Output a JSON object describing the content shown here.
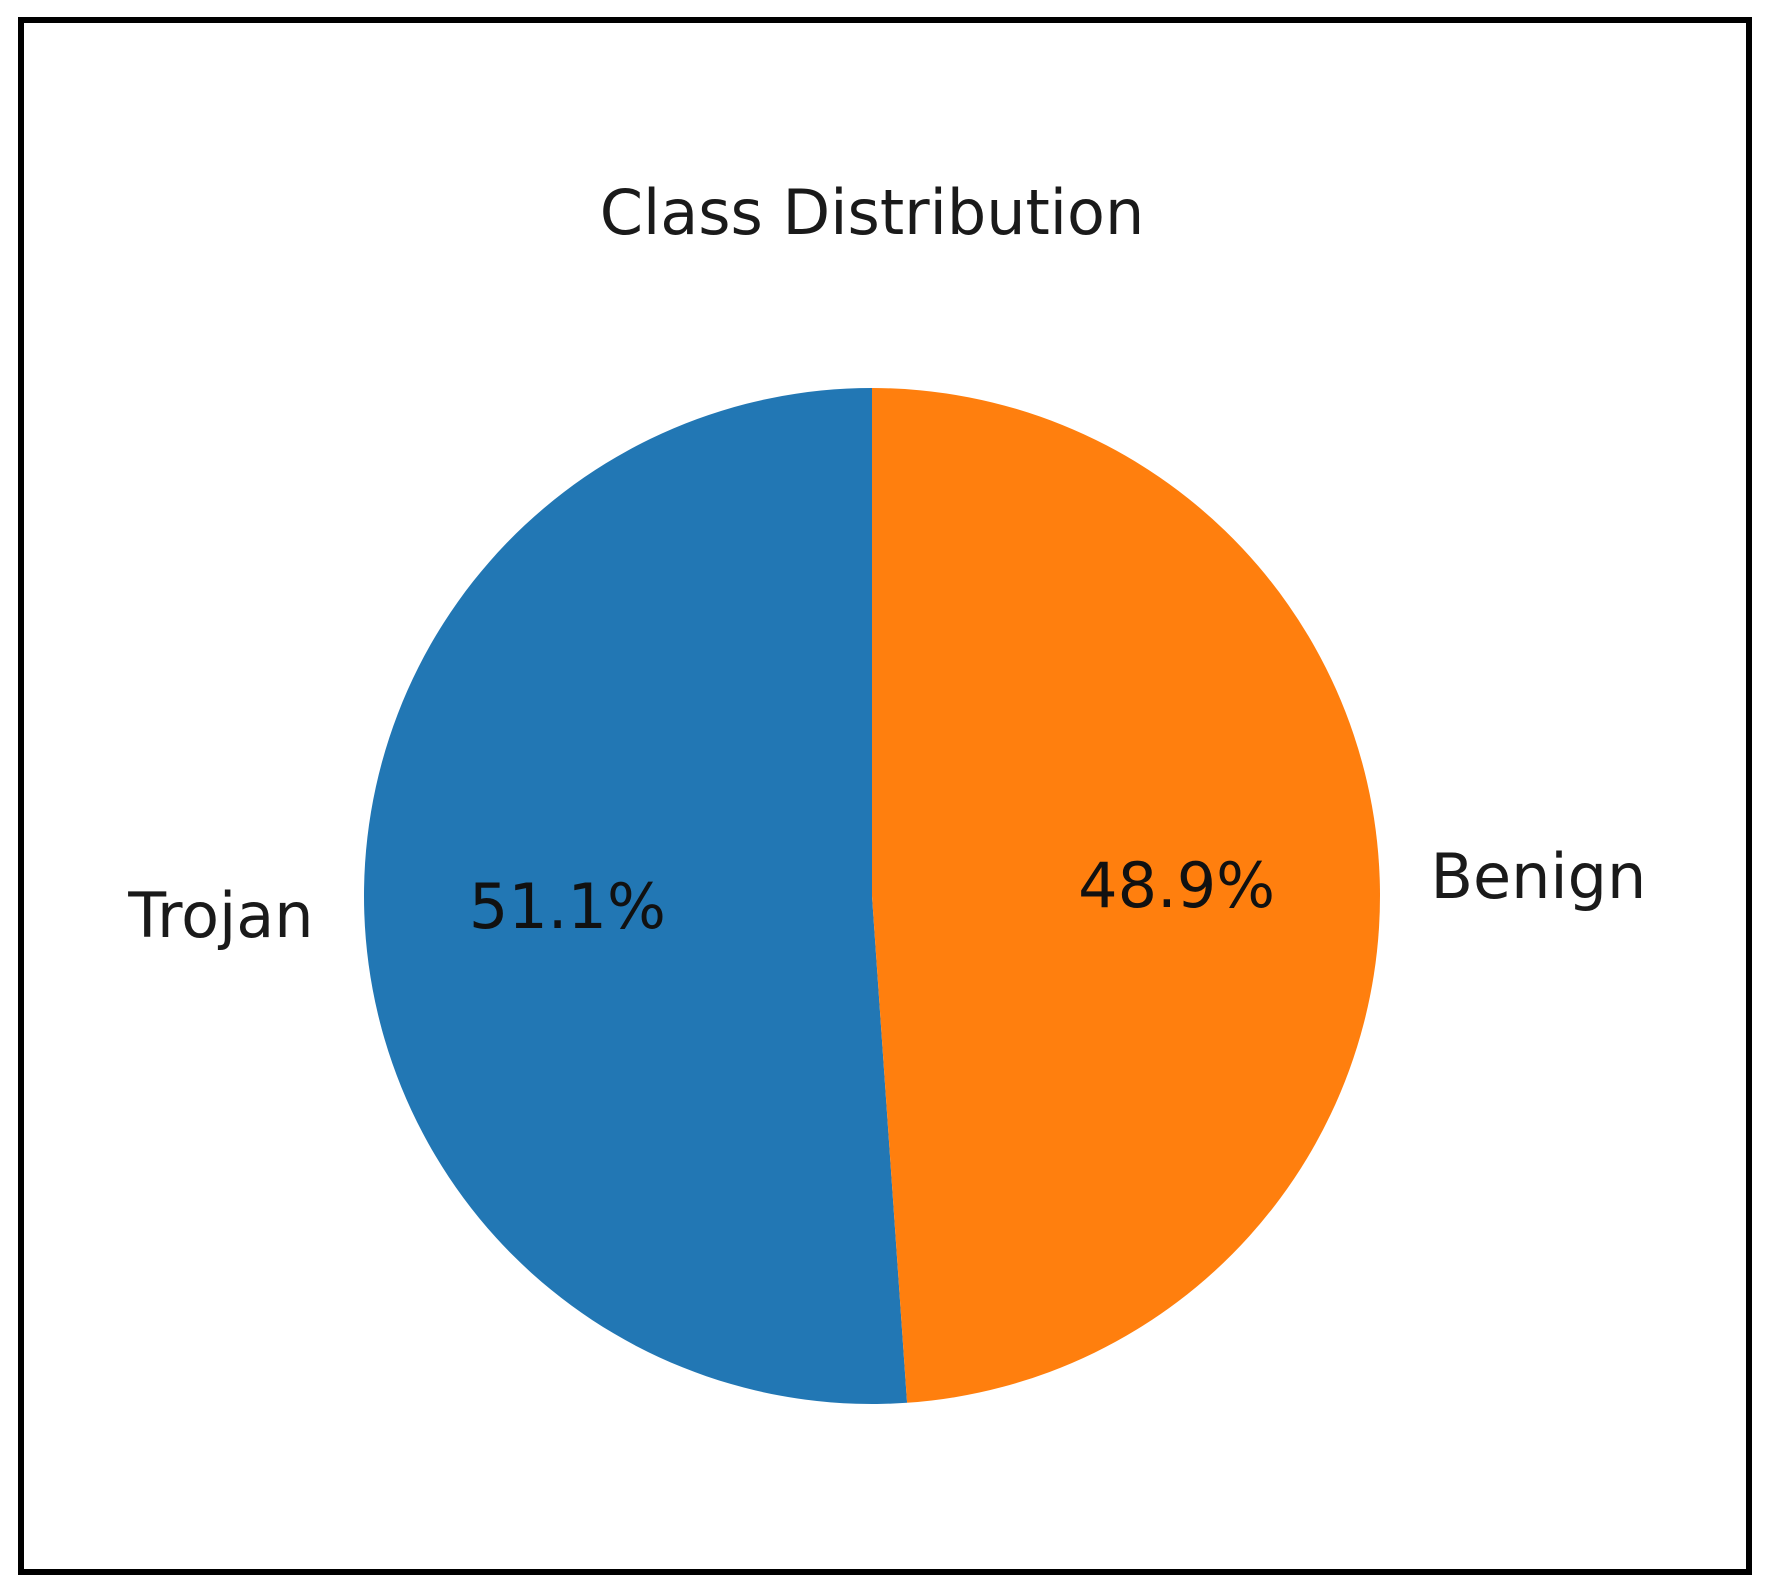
{
  "chart_data": {
    "type": "pie",
    "title": "Class Distribution",
    "slices": [
      {
        "label": "Trojan",
        "value": 51.1,
        "pct_label": "51.1%",
        "color": "#2277b4"
      },
      {
        "label": "Benign",
        "value": 48.9,
        "pct_label": "48.9%",
        "color": "#ff7f0e"
      }
    ],
    "start_angle": 90,
    "direction": "counterclockwise",
    "legend": "none"
  }
}
